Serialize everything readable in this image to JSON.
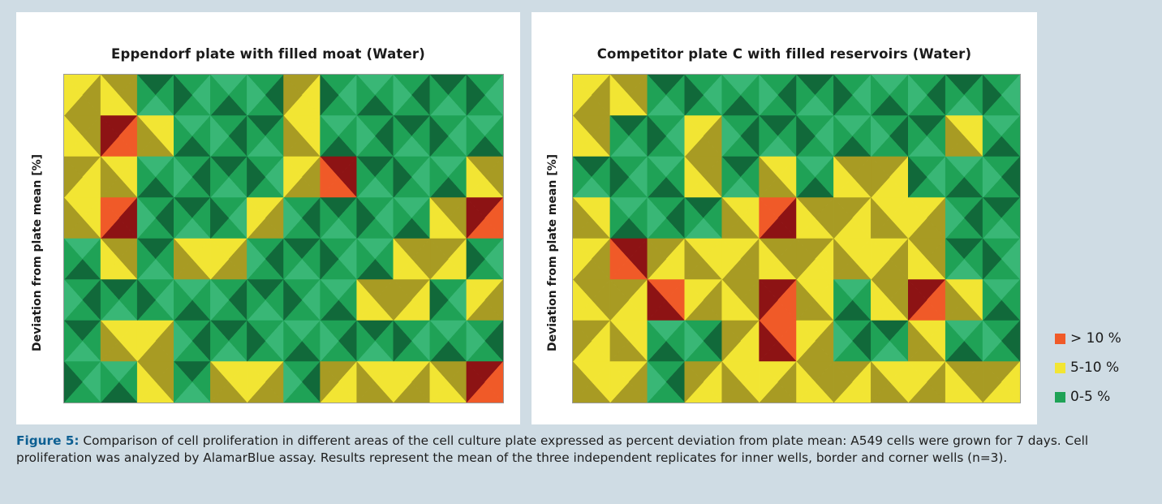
{
  "colors": {
    "high": "#f05a28",
    "mid": "#f2e533",
    "low": "#1fa256",
    "low_dark": "#11693a",
    "low_light": "#39b776",
    "high_dark": "#8d1314",
    "mid_dark": "#a89b23"
  },
  "legend": {
    "items": [
      {
        "label": "> 10 %",
        "color": "#f05a28"
      },
      {
        "label": "5-10 %",
        "color": "#f2e533"
      },
      {
        "label": "0-5 %",
        "color": "#1fa256"
      }
    ]
  },
  "caption": {
    "label": "Figure 5:",
    "text": " Comparison of cell proliferation in different areas of the cell culture plate expressed as percent deviation from plate mean: A549 cells were grown for 7 days. Cell proliferation was analyzed by AlamarBlue assay. Results represent the mean of the three independent replicates for inner wells, border and corner wells (n=3)."
  },
  "chart_data": [
    {
      "type": "heatmap",
      "title": "Eppendorf plate with filled moat (Water)",
      "ylabel": "Deviation from plate mean [%]",
      "xlabel": "",
      "rows": 8,
      "cols": 12,
      "levels": [
        "0-5 %",
        "5-10 %",
        "> 10 %"
      ],
      "values": [
        [
          1,
          1,
          0,
          0,
          0,
          0,
          1,
          0,
          0,
          0,
          0,
          0
        ],
        [
          1,
          2,
          1,
          0,
          0,
          0,
          1,
          0,
          0,
          0,
          0,
          0
        ],
        [
          1,
          1,
          0,
          0,
          0,
          0,
          1,
          2,
          0,
          0,
          0,
          1
        ],
        [
          1,
          2,
          0,
          0,
          0,
          1,
          0,
          0,
          0,
          0,
          1,
          2
        ],
        [
          0,
          1,
          0,
          1,
          1,
          0,
          0,
          0,
          0,
          1,
          1,
          0
        ],
        [
          0,
          0,
          0,
          0,
          0,
          0,
          0,
          0,
          1,
          1,
          0,
          1
        ],
        [
          0,
          1,
          1,
          0,
          0,
          0,
          0,
          0,
          0,
          0,
          0,
          0
        ],
        [
          0,
          0,
          1,
          0,
          1,
          1,
          0,
          1,
          1,
          1,
          1,
          2
        ]
      ]
    },
    {
      "type": "heatmap",
      "title": "Competitor plate C with filled reservoirs (Water)",
      "ylabel": "Deviation from plate mean [%]",
      "xlabel": "",
      "rows": 8,
      "cols": 12,
      "levels": [
        "0-5 %",
        "5-10 %",
        "> 10 %"
      ],
      "values": [
        [
          1,
          1,
          0,
          0,
          0,
          0,
          0,
          0,
          0,
          0,
          0,
          0
        ],
        [
          1,
          0,
          0,
          1,
          0,
          0,
          0,
          0,
          0,
          0,
          1,
          0
        ],
        [
          0,
          0,
          0,
          1,
          0,
          1,
          0,
          1,
          1,
          0,
          0,
          0
        ],
        [
          1,
          0,
          0,
          0,
          1,
          2,
          1,
          1,
          1,
          1,
          0,
          0
        ],
        [
          1,
          2,
          1,
          1,
          1,
          1,
          1,
          1,
          1,
          1,
          0,
          0
        ],
        [
          1,
          1,
          2,
          1,
          1,
          2,
          1,
          0,
          1,
          2,
          1,
          0
        ],
        [
          1,
          1,
          0,
          0,
          1,
          2,
          1,
          0,
          0,
          1,
          0,
          0
        ],
        [
          1,
          1,
          0,
          1,
          1,
          1,
          1,
          1,
          1,
          1,
          1,
          1
        ]
      ]
    }
  ]
}
